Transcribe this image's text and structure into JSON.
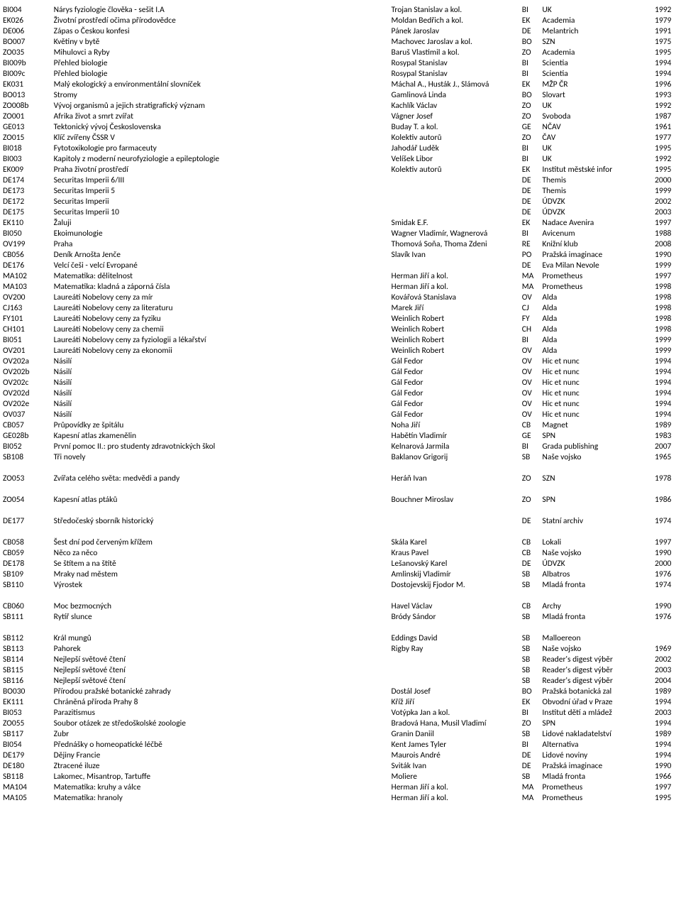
{
  "rows": [
    {
      "code": "BI004",
      "title": "Nárys fyziologie člověka - sešit I.A",
      "author": "Trojan Stanislav a kol.",
      "cat": "BI",
      "pub": "UK",
      "year": "1992"
    },
    {
      "code": "EK026",
      "title": "Životní prostředí očima přírodovědce",
      "author": "Moldan Bedřich a kol.",
      "cat": "EK",
      "pub": "Academia",
      "year": "1979"
    },
    {
      "code": "DE006",
      "title": "Zápas o Českou konfesi",
      "author": "Pánek Jaroslav",
      "cat": "DE",
      "pub": "Melantrich",
      "year": "1991"
    },
    {
      "code": "BO007",
      "title": "Květiny v bytě",
      "author": "Machovec Jaroslav a kol.",
      "cat": "BO",
      "pub": "SZN",
      "year": "1975"
    },
    {
      "code": "ZO035",
      "title": "Mihulovci a Ryby",
      "author": "Baruš Vlastimil a kol.",
      "cat": "ZO",
      "pub": "Academia",
      "year": "1995"
    },
    {
      "code": "BI009b",
      "title": "Přehled biologie",
      "author": "Rosypal Stanislav",
      "cat": "BI",
      "pub": "Scientia",
      "year": "1994"
    },
    {
      "code": "BI009c",
      "title": "Přehled biologie",
      "author": "Rosypal Stanislav",
      "cat": "BI",
      "pub": "Scientia",
      "year": "1994"
    },
    {
      "code": "EK031",
      "title": "Malý ekologický a environmentální slovníček",
      "author": "Máchal A., Husták J., Slámová",
      "cat": "EK",
      "pub": "MŽP ČR",
      "year": "1996"
    },
    {
      "code": "BO013",
      "title": "Stromy",
      "author": "Gamlinová Linda",
      "cat": "BO",
      "pub": "Slovart",
      "year": "1993"
    },
    {
      "code": "ZO008b",
      "title": "Vývoj organismů a jejich stratigrafický význam",
      "author": "Kachlík Václav",
      "cat": "ZO",
      "pub": "UK",
      "year": "1992"
    },
    {
      "code": "ZO001",
      "title": "Afrika život a smrt zvířat",
      "author": "Vágner Josef",
      "cat": "ZO",
      "pub": "Svoboda",
      "year": "1987"
    },
    {
      "code": "GE013",
      "title": "Tektonický vývoj Československa",
      "author": "Buday T. a kol.",
      "cat": "GE",
      "pub": "NČAV",
      "year": "1961"
    },
    {
      "code": "ZO015",
      "title": "Klíč zvířeny ČSSR V",
      "author": "Kolektiv autorů",
      "cat": "ZO",
      "pub": "ČAV",
      "year": "1977"
    },
    {
      "code": "BI018",
      "title": "Fytotoxikologie pro farmaceuty",
      "author": "Jahodář Luděk",
      "cat": "BI",
      "pub": " UK",
      "year": "1995"
    },
    {
      "code": "BI003",
      "title": "Kapitoly z moderní neurofyziologie a epileptologie",
      "author": "Velíšek Libor",
      "cat": "BI",
      "pub": "UK",
      "year": "1992"
    },
    {
      "code": "EK009",
      "title": "Praha životní prostředí",
      "author": "Kolektiv autorů",
      "cat": "EK",
      "pub": "Institut městské infor",
      "year": "1995"
    },
    {
      "code": "DE174",
      "title": "Securitas Imperii 6/III",
      "author": "",
      "cat": "DE",
      "pub": "Themis",
      "year": "2000"
    },
    {
      "code": "DE173",
      "title": "Securitas Imperii 5",
      "author": "",
      "cat": "DE",
      "pub": "Themis",
      "year": "1999"
    },
    {
      "code": "DE172",
      "title": "Securitas Imperii",
      "author": "",
      "cat": "DE",
      "pub": "ÚDVZK",
      "year": "2002"
    },
    {
      "code": "DE175",
      "title": "Securitas Imperii 10",
      "author": "",
      "cat": "DE",
      "pub": "ÚDVZK",
      "year": "2003"
    },
    {
      "code": "EK110",
      "title": "Žaluji",
      "author": "Smidak E.F.",
      "cat": "EK",
      "pub": "Nadace Avenira",
      "year": "1997"
    },
    {
      "code": "BI050",
      "title": "Ekoimunologie",
      "author": "Wagner Vladimír, Wagnerová",
      "cat": "BI",
      "pub": "Avicenum",
      "year": "1988"
    },
    {
      "code": "OV199",
      "title": "Praha",
      "author": "Thomová Soňa, Thoma Zdeni",
      "cat": "RE",
      "pub": "Knižní klub",
      "year": "2008"
    },
    {
      "code": "CB056",
      "title": "Deník Arnošta Jenče",
      "author": "Slavík Ivan",
      "cat": "PO",
      "pub": "Pražská imaginace",
      "year": "1990"
    },
    {
      "code": "DE176",
      "title": "Velcí češi - velcí Evropané",
      "author": "",
      "cat": "DE",
      "pub": "Eva Milan Nevole",
      "year": "1999"
    },
    {
      "code": "MA102",
      "title": "Matematika: dělitelnost",
      "author": "Herman Jiří a kol.",
      "cat": "MA",
      "pub": "Prometheus",
      "year": "1997"
    },
    {
      "code": "MA103",
      "title": "Matematika: kladná a záporná čísla",
      "author": "Herman Jiří a kol.",
      "cat": "MA",
      "pub": "Prometheus",
      "year": "1998"
    },
    {
      "code": "OV200",
      "title": "Laureáti Nobelovy ceny za mír",
      "author": "Kovářová Stanislava",
      "cat": "OV",
      "pub": "Alda",
      "year": "1998"
    },
    {
      "code": "CJ163",
      "title": "Laureáti Nobelovy ceny za literaturu",
      "author": "Marek Jiří",
      "cat": "CJ",
      "pub": "Alda",
      "year": "1998"
    },
    {
      "code": "FY101",
      "title": "Laureáti Nobelovy ceny za fyziku",
      "author": "Weinlich Robert",
      "cat": "FY",
      "pub": "Alda",
      "year": "1998"
    },
    {
      "code": "CH101",
      "title": "Laureáti Nobelovy ceny za chemii",
      "author": "Weinlich Robert",
      "cat": "CH",
      "pub": "Alda",
      "year": "1998"
    },
    {
      "code": "BI051",
      "title": "Laureáti Nobelovy ceny za fyziologii a lékařství",
      "author": "Weinlich Robert",
      "cat": "BI",
      "pub": "Alda",
      "year": "1999"
    },
    {
      "code": "OV201",
      "title": "Laureáti Nobelovy ceny za ekonomii",
      "author": "Weinlich Robert",
      "cat": "OV",
      "pub": "Alda",
      "year": "1999"
    },
    {
      "code": "OV202a",
      "title": "Násilí",
      "author": "Gál Fedor",
      "cat": "OV",
      "pub": "Hic et nunc",
      "year": "1994"
    },
    {
      "code": "OV202b",
      "title": "Násilí",
      "author": "Gál Fedor",
      "cat": "OV",
      "pub": "Hic et nunc",
      "year": "1994"
    },
    {
      "code": "OV202c",
      "title": "Násilí",
      "author": "Gál Fedor",
      "cat": "OV",
      "pub": "Hic et nunc",
      "year": "1994"
    },
    {
      "code": "OV202d",
      "title": "Násilí",
      "author": "Gál Fedor",
      "cat": "OV",
      "pub": "Hic et nunc",
      "year": "1994"
    },
    {
      "code": "OV202e",
      "title": "Násilí",
      "author": "Gál Fedor",
      "cat": "OV",
      "pub": "Hic et nunc",
      "year": "1994"
    },
    {
      "code": "OV037",
      "title": "Násilí",
      "author": "Gál Fedor",
      "cat": "OV",
      "pub": "Hic et nunc",
      "year": "1994"
    },
    {
      "code": "CB057",
      "title": "Průpovídky ze špitálu",
      "author": "Noha Jiří",
      "cat": "CB",
      "pub": "Magnet",
      "year": "1989"
    },
    {
      "code": "GE028b",
      "title": "Kapesní atlas zkamenělin",
      "author": "Habětín Vladimír",
      "cat": "GE",
      "pub": "SPN",
      "year": "1983"
    },
    {
      "code": "BI052",
      "title": "První pomoc II.: pro studenty zdravotnických škol",
      "author": "Kelnarová Jarmila",
      "cat": "BI",
      "pub": "Grada publishing",
      "year": "2007"
    },
    {
      "code": "SB108",
      "title": "Tři novely",
      "author": "Baklanov Grigorij",
      "cat": "SB",
      "pub": "Naše  vojsko",
      "year": "1965"
    },
    {
      "gap": true
    },
    {
      "code": "ZO053",
      "title": "Zvířata celého světa: medvědi a pandy",
      "author": "Heráň Ivan",
      "cat": "ZO",
      "pub": "SZN",
      "year": "1978"
    },
    {
      "gap": true
    },
    {
      "code": "ZO054",
      "title": "Kapesní atlas ptáků",
      "author": "Bouchner Miroslav",
      "cat": "ZO",
      "pub": "SPN",
      "year": "1986"
    },
    {
      "gap": true
    },
    {
      "code": "DE177",
      "title": "Středočeský sborník historický",
      "author": "",
      "cat": "DE",
      "pub": "Statní archiv",
      "year": "1974"
    },
    {
      "gap": true
    },
    {
      "code": "CB058",
      "title": "Šest dní pod červeným křížem",
      "author": "Skála Karel",
      "cat": "CB",
      "pub": "Lokali",
      "year": "1997"
    },
    {
      "code": "CB059",
      "title": "Něco za něco",
      "author": "Kraus Pavel",
      "cat": "CB",
      "pub": "Naše vojsko",
      "year": "1990"
    },
    {
      "code": "DE178",
      "title": "Se štítem a na štítě",
      "author": "Lešanovský Karel",
      "cat": "DE",
      "pub": "ÚDVZK",
      "year": "2000"
    },
    {
      "code": "SB109",
      "title": "Mraky nad městem",
      "author": "Amlinskij Vladimír",
      "cat": "SB",
      "pub": "Albatros",
      "year": "1976"
    },
    {
      "code": "SB110",
      "title": "Výrostek",
      "author": "Dostojevskij Fjodor M.",
      "cat": "SB",
      "pub": "Mladá fronta",
      "year": "1974"
    },
    {
      "gap": true
    },
    {
      "code": "CB060",
      "title": "Moc bezmocných",
      "author": "Havel Václav",
      "cat": "CB",
      "pub": "Archy",
      "year": "1990"
    },
    {
      "code": "SB111",
      "title": "Rytíř slunce",
      "author": "Bródy Sándor",
      "cat": "SB",
      "pub": "Mladá fronta",
      "year": "1976"
    },
    {
      "gap": true
    },
    {
      "code": "SB112",
      "title": "Král mungů",
      "author": "Eddings David",
      "cat": "SB",
      "pub": "Malloereon",
      "year": ""
    },
    {
      "code": "SB113",
      "title": "Pahorek",
      "author": "Rigby Ray",
      "cat": "SB",
      "pub": "Naše vojsko",
      "year": "1969"
    },
    {
      "code": "SB114",
      "title": "Nejlepší světové čtení",
      "author": "",
      "cat": "SB",
      "pub": "Reader's digest výběr",
      "year": "2002"
    },
    {
      "code": "SB115",
      "title": "Nejlepší světové čtení",
      "author": "",
      "cat": "SB",
      "pub": "Reader's digest výběr",
      "year": "2003"
    },
    {
      "code": "SB116",
      "title": "Nejlepší světové čtení",
      "author": "",
      "cat": "SB",
      "pub": "Reader's digest výběr",
      "year": "2004"
    },
    {
      "code": "BO030",
      "title": "Přírodou pražské botanické zahrady",
      "author": "Dostál Josef",
      "cat": "BO",
      "pub": "Pražská botanická zal",
      "year": "1989"
    },
    {
      "code": "EK111",
      "title": "Chráněná příroda Prahy 8",
      "author": "Kříž Jiří",
      "cat": "EK",
      "pub": "Obvodní úřad v Praze",
      "year": "1994"
    },
    {
      "code": "BI053",
      "title": "Parazitismus",
      "author": "Votýpka Jan a kol.",
      "cat": "BI",
      "pub": "Institut dětí a mládež",
      "year": "2003"
    },
    {
      "code": "ZO055",
      "title": "Soubor otázek ze středoškolské zoologie",
      "author": "Bradová Hana, Musil Vladimí",
      "cat": "ZO",
      "pub": "SPN",
      "year": "1994"
    },
    {
      "code": "SB117",
      "title": "Zubr",
      "author": "Granin Daniil",
      "cat": "SB",
      "pub": "Lidové nakladatelství",
      "year": "1989"
    },
    {
      "code": "BI054",
      "title": "Přednášky o homeopatické léčbě",
      "author": "Kent James Tyler",
      "cat": "BI",
      "pub": "Alternativa",
      "year": "1994"
    },
    {
      "code": "DE179",
      "title": "Dějiny Francie",
      "author": "Maurois André",
      "cat": "DE",
      "pub": "Lidové noviny",
      "year": "1994"
    },
    {
      "code": "DE180",
      "title": "Ztracené iluze",
      "author": "Sviták Ivan",
      "cat": "DE",
      "pub": "Pražská imaginace",
      "year": "1990"
    },
    {
      "code": "SB118",
      "title": "Lakomec, Misantrop, Tartuffe",
      "author": "Moliere",
      "cat": "SB",
      "pub": "Mladá fronta",
      "year": "1966"
    },
    {
      "code": "MA104",
      "title": "Matematika: kruhy a válce",
      "author": "Herman Jiří a kol.",
      "cat": "MA",
      "pub": "Prometheus",
      "year": "1997"
    },
    {
      "code": "MA105",
      "title": "Matematika: hranoly",
      "author": "Herman Jiří a kol.",
      "cat": "MA",
      "pub": "Prometheus",
      "year": "1995"
    }
  ]
}
